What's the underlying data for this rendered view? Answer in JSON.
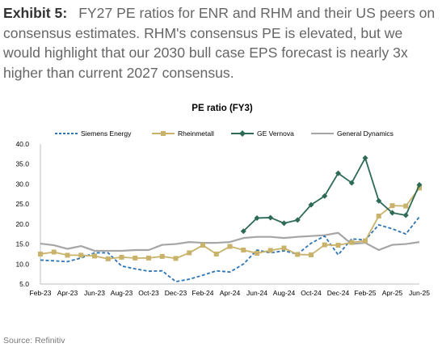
{
  "caption": {
    "label": "Exhibit 5:",
    "text": "FY27 PE ratios for ENR and RHM and their US peers on consensus estimates. RHM's consensus PE is elevated, but we would highlight that our 2030 bull case EPS forecast is nearly 3x higher than current 2027 consensus."
  },
  "source": "Source: Refinitiv",
  "chart_data": {
    "type": "line",
    "title": "PE ratio (FY3)",
    "legend_placement": "top",
    "grid": false,
    "ylim": [
      5,
      40
    ],
    "yticks": [
      "5.0",
      "10.0",
      "15.0",
      "20.0",
      "25.0",
      "30.0",
      "35.0",
      "40.0"
    ],
    "x": [
      "Feb-23",
      "Mar-23",
      "Apr-23",
      "May-23",
      "Jun-23",
      "Jul-23",
      "Aug-23",
      "Sep-23",
      "Oct-23",
      "Nov-23",
      "Dec-23",
      "Jan-24",
      "Feb-24",
      "Mar-24",
      "Apr-24",
      "May-24",
      "Jun-24",
      "Jul-24",
      "Aug-24",
      "Sep-24",
      "Oct-24",
      "Nov-24",
      "Dec-24",
      "Jan-25",
      "Feb-25",
      "Mar-25",
      "Apr-25",
      "May-25",
      "Jun-25"
    ],
    "xtick_labels": [
      "Feb-23",
      "Apr-23",
      "Jun-23",
      "Aug-23",
      "Oct-23",
      "Dec-23",
      "Feb-24",
      "Apr-24",
      "Jun-24",
      "Aug-24",
      "Oct-24",
      "Dec-24",
      "Feb-25",
      "Apr-25",
      "Jun-25"
    ],
    "series": [
      {
        "name": "Siemens Energy",
        "color": "#2e75b6",
        "style": "dashed",
        "values": [
          11.0,
          10.8,
          10.6,
          11.5,
          12.8,
          12.8,
          9.5,
          8.8,
          8.2,
          8.3,
          5.6,
          6.2,
          7.2,
          8.3,
          8.0,
          10.0,
          13.5,
          12.8,
          13.3,
          12.5,
          15.2,
          17.0,
          12.3,
          16.3,
          16.0,
          19.8,
          18.8,
          17.5,
          21.8
        ]
      },
      {
        "name": "Rheinmetall",
        "color": "#c9b26a",
        "marker": "square",
        "values": [
          12.5,
          13.0,
          12.2,
          12.2,
          12.0,
          11.3,
          11.7,
          11.5,
          11.5,
          11.9,
          11.4,
          12.8,
          14.7,
          12.5,
          14.4,
          13.5,
          12.7,
          13.4,
          14.0,
          12.4,
          12.3,
          14.8,
          14.7,
          15.4,
          15.8,
          22.0,
          24.6,
          24.5,
          29.0
        ]
      },
      {
        "name": "GE Vernova",
        "color": "#2e6b57",
        "marker": "diamond",
        "values": [
          null,
          null,
          null,
          null,
          null,
          null,
          null,
          null,
          null,
          null,
          null,
          null,
          null,
          null,
          null,
          18.2,
          21.5,
          21.6,
          20.2,
          21.0,
          24.8,
          27.0,
          32.7,
          30.3,
          36.5,
          25.8,
          22.8,
          22.2,
          29.8
        ]
      },
      {
        "name": "General Dynamics",
        "color": "#a6a6a6",
        "style": "solid",
        "values": [
          15.1,
          14.7,
          13.8,
          14.5,
          13.3,
          13.3,
          13.3,
          13.5,
          13.5,
          14.8,
          15.0,
          15.5,
          15.3,
          15.3,
          15.5,
          16.5,
          16.8,
          16.8,
          16.5,
          16.8,
          17.0,
          17.2,
          17.8,
          15.0,
          15.3,
          13.5,
          14.8,
          15.0,
          15.5
        ]
      }
    ]
  }
}
